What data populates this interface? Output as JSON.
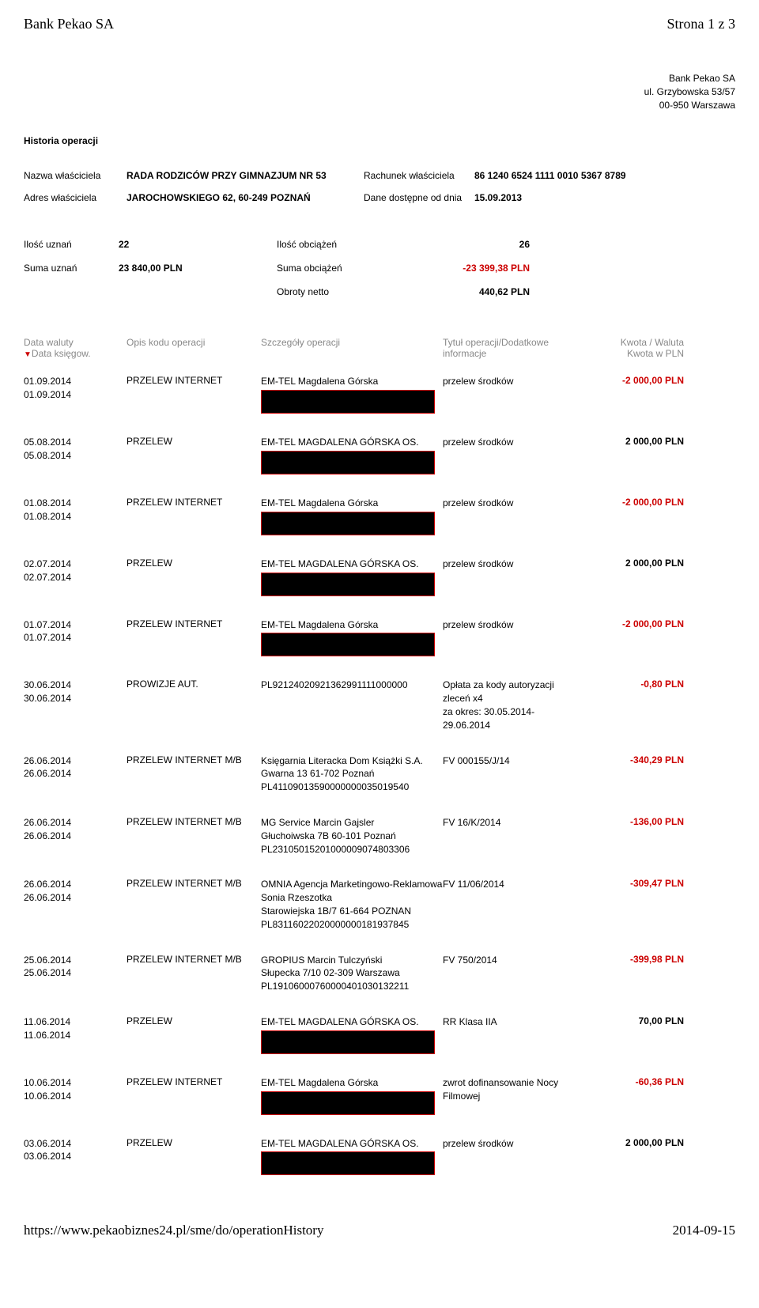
{
  "page_header": {
    "left": "Bank Pekao SA",
    "right": "Strona 1 z 3"
  },
  "bank": {
    "name": "Bank Pekao SA",
    "street": "ul. Grzybowska 53/57",
    "city": "00-950 Warszawa"
  },
  "history_title": "Historia operacji",
  "owner": {
    "name_label": "Nazwa właściciela",
    "name_value": "RADA RODZICÓW PRZY GIMNAZJUM NR 53",
    "account_label": "Rachunek właściciela",
    "account_value": "86 1240 6524 1111 0010 5367 8789",
    "addr_label": "Adres właściciela",
    "addr_value": "JAROCHOWSKIEGO 62, 60-249 POZNAŃ",
    "avail_label": "Dane dostępne od dnia",
    "avail_value": "15.09.2013"
  },
  "summary": {
    "credit_count_label": "Ilość uznań",
    "credit_count": "22",
    "debit_count_label": "Ilość obciążeń",
    "debit_count": "26",
    "credit_sum_label": "Suma uznań",
    "credit_sum": "23 840,00 PLN",
    "debit_sum_label": "Suma obciążeń",
    "debit_sum": "-23 399,38 PLN",
    "net_label": "Obroty netto",
    "net": "440,62 PLN"
  },
  "cols": {
    "date": "Data waluty",
    "date2": "Data księgow.",
    "code": "Opis kodu operacji",
    "detail": "Szczegóły operacji",
    "title": "Tytuł operacji/Dodatkowe informacje",
    "amount": "Kwota / Waluta",
    "amount2": "Kwota w PLN"
  },
  "txns": [
    {
      "d1": "01.09.2014",
      "d2": "01.09.2014",
      "code": "PRZELEW INTERNET",
      "detail": "EM-TEL Magdalena Górska",
      "redact": true,
      "title": "przelew środków",
      "amt": "-2 000,00 PLN",
      "neg": true
    },
    {
      "d1": "05.08.2014",
      "d2": "05.08.2014",
      "code": "PRZELEW",
      "detail": "EM-TEL MAGDALENA GÓRSKA OS.",
      "redact": true,
      "title": "przelew środków",
      "amt": "2 000,00 PLN",
      "neg": false
    },
    {
      "d1": "01.08.2014",
      "d2": "01.08.2014",
      "code": "PRZELEW INTERNET",
      "detail": "EM-TEL Magdalena Górska",
      "redact": true,
      "title": "przelew środków",
      "amt": "-2 000,00 PLN",
      "neg": true
    },
    {
      "d1": "02.07.2014",
      "d2": "02.07.2014",
      "code": "PRZELEW",
      "detail": "EM-TEL MAGDALENA GÓRSKA OS.",
      "redact": true,
      "title": "przelew środków",
      "amt": "2 000,00 PLN",
      "neg": false
    },
    {
      "d1": "01.07.2014",
      "d2": "01.07.2014",
      "code": "PRZELEW INTERNET",
      "detail": "EM-TEL Magdalena Górska",
      "redact": true,
      "title": "przelew środków",
      "amt": "-2 000,00 PLN",
      "neg": true
    },
    {
      "d1": "30.06.2014",
      "d2": "30.06.2014",
      "code": "PROWIZJE AUT.",
      "detail": "\nPL92124020921362991111000000",
      "redact": false,
      "title": "Opłata za kody autoryzacji zleceń x4\nza okres: 30.05.2014-29.06.2014",
      "amt": "-0,80 PLN",
      "neg": true
    },
    {
      "d1": "26.06.2014",
      "d2": "26.06.2014",
      "code": "PRZELEW INTERNET M/B",
      "detail": "Księgarnia Literacka Dom Książki S.A.\nGwarna 13 61-702 Poznań\nPL41109013590000000035019540",
      "redact": false,
      "title": "FV 000155/J/14",
      "amt": "-340,29 PLN",
      "neg": true
    },
    {
      "d1": "26.06.2014",
      "d2": "26.06.2014",
      "code": "PRZELEW INTERNET M/B",
      "detail": "MG Service Marcin Gajsler\nGłuchoiwska 7B 60-101 Poznań\nPL23105015201000009074803306",
      "redact": false,
      "title": "FV 16/K/2014",
      "amt": "-136,00 PLN",
      "neg": true
    },
    {
      "d1": "26.06.2014",
      "d2": "26.06.2014",
      "code": "PRZELEW INTERNET M/B",
      "detail": "OMNIA Agencja Marketingowo-Reklamowa Sonia Rzeszotka\nStarowiejska 1B/7 61-664 POZNAN\nPL83116022020000000181937845",
      "redact": false,
      "title": "FV 11/06/2014",
      "amt": "-309,47 PLN",
      "neg": true
    },
    {
      "d1": "25.06.2014",
      "d2": "25.06.2014",
      "code": "PRZELEW INTERNET M/B",
      "detail": "GROPIUS Marcin Tulczyński\nSłupecka 7/10 02-309 Warszawa\nPL19106000760000401030132211",
      "redact": false,
      "title": "FV 750/2014",
      "amt": "-399,98 PLN",
      "neg": true
    },
    {
      "d1": "11.06.2014",
      "d2": "11.06.2014",
      "code": "PRZELEW",
      "detail": "EM-TEL MAGDALENA GÓRSKA OS.",
      "redact": true,
      "title": "RR Klasa IIA",
      "amt": "70,00 PLN",
      "neg": false
    },
    {
      "d1": "10.06.2014",
      "d2": "10.06.2014",
      "code": "PRZELEW INTERNET",
      "detail": "EM-TEL Magdalena Górska",
      "redact": true,
      "title": "zwrot dofinansowanie Nocy Filmowej",
      "amt": "-60,36 PLN",
      "neg": true
    },
    {
      "d1": "03.06.2014",
      "d2": "03.06.2014",
      "code": "PRZELEW",
      "detail": "EM-TEL MAGDALENA GÓRSKA OS.",
      "redact": true,
      "title": "przelew środków",
      "amt": "2 000,00 PLN",
      "neg": false
    }
  ],
  "footer": {
    "url": "https://www.pekaobiznes24.pl/sme/do/operationHistory",
    "date": "2014-09-15"
  }
}
